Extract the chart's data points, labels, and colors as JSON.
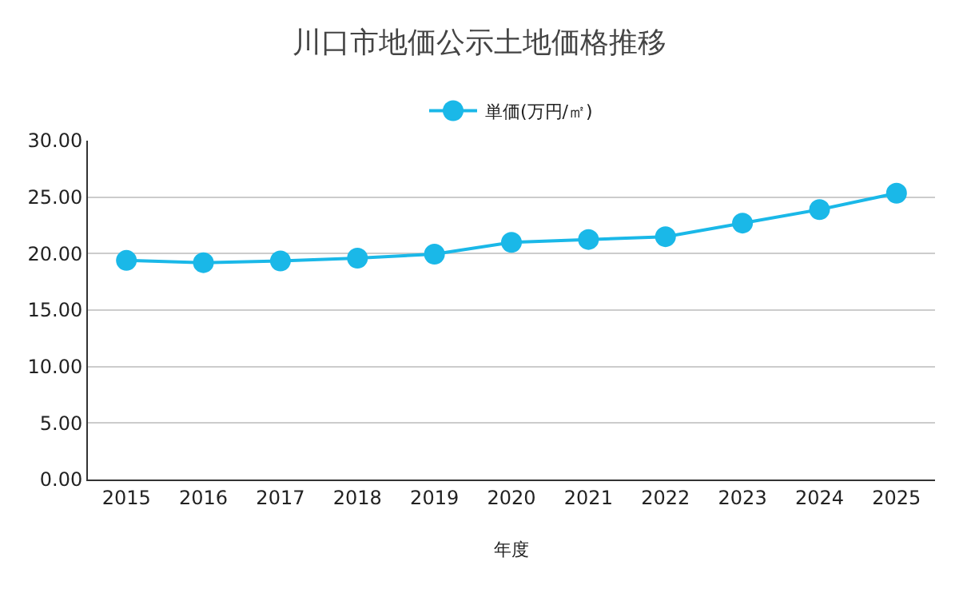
{
  "chart_data": {
    "type": "line",
    "title": "川口市地価公示土地価格推移",
    "xlabel": "年度",
    "categories": [
      "2015",
      "2016",
      "2017",
      "2018",
      "2019",
      "2020",
      "2021",
      "2022",
      "2023",
      "2024",
      "2025"
    ],
    "series": [
      {
        "name": "単価(万円/㎡)",
        "color": "#1ab8e8",
        "values": [
          19.4,
          19.2,
          19.35,
          19.6,
          19.95,
          21.0,
          21.25,
          21.5,
          22.7,
          23.9,
          25.35
        ]
      }
    ],
    "ylim": [
      0,
      30
    ],
    "yticks": [
      {
        "value": 0,
        "label": "0.00"
      },
      {
        "value": 5,
        "label": "5.00"
      },
      {
        "value": 10,
        "label": "10.00"
      },
      {
        "value": 15,
        "label": "15.00"
      },
      {
        "value": 20,
        "label": "20.00"
      },
      {
        "value": 25,
        "label": "25.00"
      },
      {
        "value": 30,
        "label": "30.00"
      }
    ],
    "grid": "y",
    "legend": "top",
    "marker": "circle",
    "line_style": "solid"
  }
}
